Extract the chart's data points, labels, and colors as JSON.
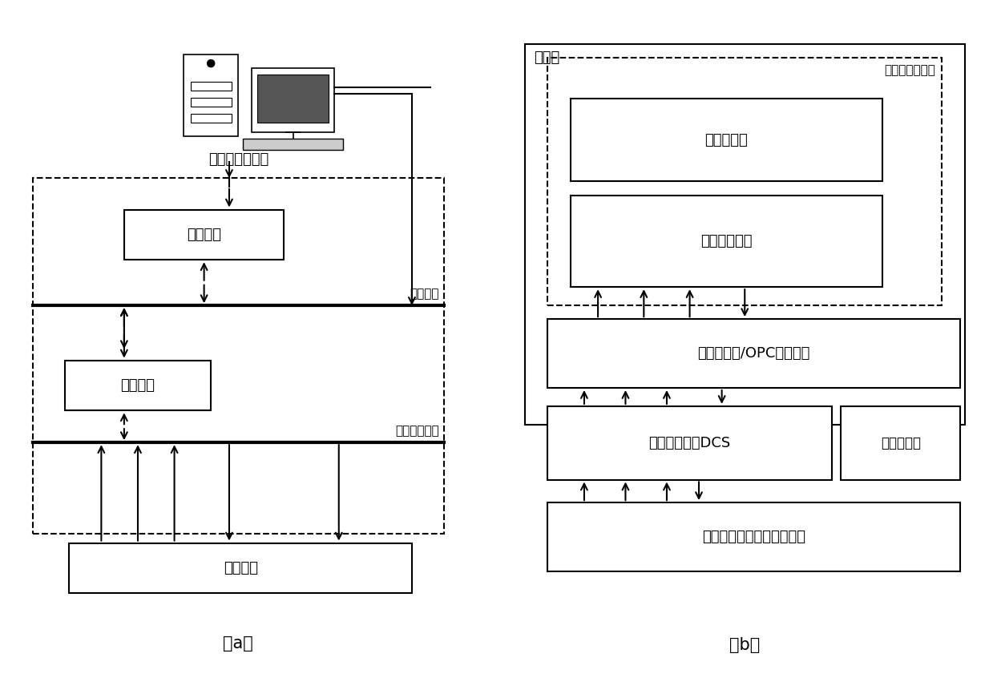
{
  "fig_width": 12.39,
  "fig_height": 8.71,
  "bg_color": "#ffffff",
  "label_a": "（a）",
  "label_b": "（b）",
  "diagram_a": {
    "title": "软测量运行平台",
    "box_operator": "操作员站",
    "box_data_interface": "数据接口",
    "box_field_instrument": "现场仪表",
    "label_control_network": "控制网络",
    "label_field_network": "现场通讯网络"
  },
  "diagram_b": {
    "outer_box_label": "上位机",
    "inner_dashed_label": "动态软测量程序",
    "box_three_stage": "三阶段模型",
    "box_data_processing": "数据处理模块",
    "box_realtime_db": "实时数据库/OPC通讯软件",
    "box_dcs": "集散控制系统DCS",
    "box_operator_ui": "操作员界面",
    "box_field_device": "聚合反应装置（现场仪表）"
  },
  "font_size_main": 13,
  "font_size_label": 11,
  "font_size_caption": 15
}
